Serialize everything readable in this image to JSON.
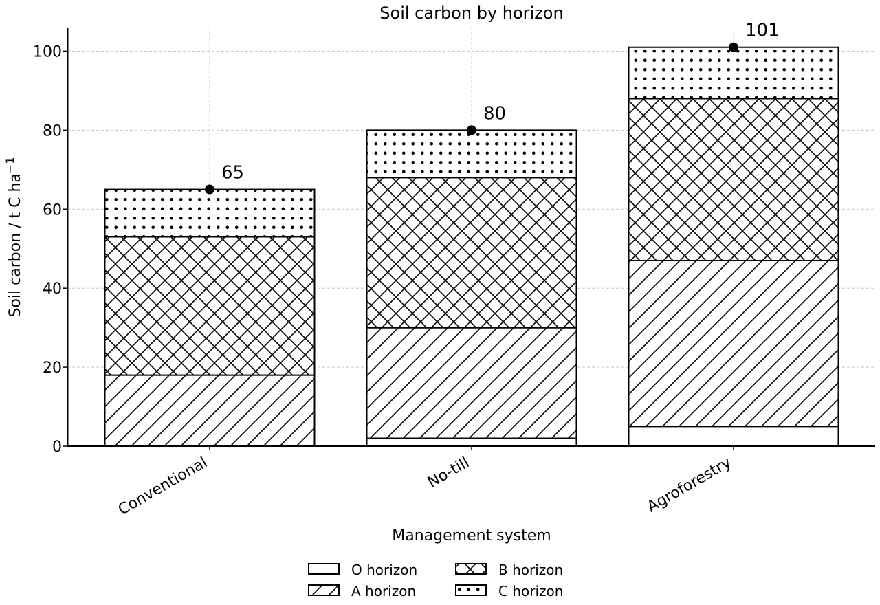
{
  "chart_data": {
    "type": "bar",
    "stacked": true,
    "title": "Soil carbon by horizon",
    "xlabel": "Management system",
    "ylabel": "Soil carbon / t C ha",
    "ylabel_superscript": "−1",
    "categories": [
      "Conventional",
      "No-till",
      "Agroforestry"
    ],
    "series": [
      {
        "name": "O horizon",
        "pattern": "none",
        "values": [
          0,
          2,
          5
        ]
      },
      {
        "name": "A horizon",
        "pattern": "diagonal",
        "values": [
          18,
          28,
          42
        ]
      },
      {
        "name": "B horizon",
        "pattern": "cross",
        "values": [
          35,
          38,
          41
        ]
      },
      {
        "name": "C horizon",
        "pattern": "dots",
        "values": [
          12,
          12,
          13
        ]
      }
    ],
    "totals": [
      65,
      80,
      101
    ],
    "total_labels": [
      "65",
      "80",
      "101"
    ],
    "ylim": [
      0,
      106
    ],
    "yticks": [
      0,
      20,
      40,
      60,
      80,
      100
    ],
    "ytick_labels": [
      "0",
      "20",
      "40",
      "60",
      "80",
      "100"
    ],
    "grid": true,
    "legend_position": "bottom-center",
    "colors": {
      "fill": "#ffffff",
      "edge": "#000000",
      "grid": "#c8c8c8",
      "marker": "#000000"
    }
  }
}
